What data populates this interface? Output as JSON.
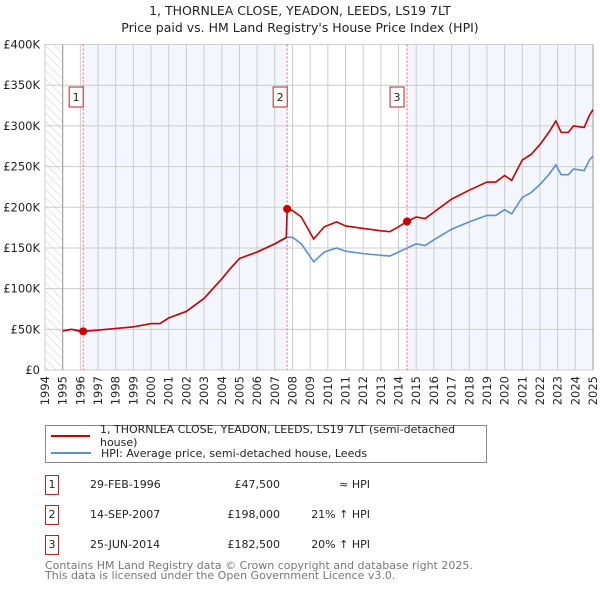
{
  "chart_data": {
    "type": "line",
    "title": "1, THORNLEA CLOSE, YEADON, LEEDS, LS19 7LT",
    "subtitle": "Price paid vs. HM Land Registry's House Price Index (HPI)",
    "xlim": [
      1994,
      2025
    ],
    "ylim": [
      0,
      400000
    ],
    "y_ticks": [
      {
        "v": 0,
        "label": "£0"
      },
      {
        "v": 50000,
        "label": "£50K"
      },
      {
        "v": 100000,
        "label": "£100K"
      },
      {
        "v": 150000,
        "label": "£150K"
      },
      {
        "v": 200000,
        "label": "£200K"
      },
      {
        "v": 250000,
        "label": "£250K"
      },
      {
        "v": 300000,
        "label": "£300K"
      },
      {
        "v": 350000,
        "label": "£350K"
      },
      {
        "v": 400000,
        "label": "£400K"
      }
    ],
    "x_ticks": [
      "1994",
      "1995",
      "1996",
      "1997",
      "1998",
      "1999",
      "2000",
      "2001",
      "2002",
      "2003",
      "2004",
      "2005",
      "2006",
      "2007",
      "2008",
      "2009",
      "2010",
      "2011",
      "2012",
      "2013",
      "2014",
      "2015",
      "2016",
      "2017",
      "2018",
      "2019",
      "2020",
      "2021",
      "2022",
      "2023",
      "2024",
      "2025"
    ],
    "grid": true,
    "series": [
      {
        "name": "1, THORNLEA CLOSE, YEADON, LEEDS, LS19 7LT (semi-detached house)",
        "color": "#cc0000",
        "x": [
          1995,
          1995.5,
          1996,
          1996.16,
          1997,
          1998,
          1999,
          2000,
          2000.5,
          2001,
          2002,
          2003,
          2004,
          2004.5,
          2005,
          2006,
          2007,
          2007.65,
          2007.7,
          2008,
          2008.5,
          2009.2,
          2009.8,
          2010.5,
          2011,
          2012,
          2013,
          2013.5,
          2014,
          2014.48,
          2015,
          2015.5,
          2016,
          2017,
          2018,
          2019,
          2019.5,
          2020,
          2020.4,
          2021,
          2021.5,
          2022,
          2022.5,
          2022.9,
          2023.2,
          2023.6,
          2023.9,
          2024.5,
          2024.8,
          2025
        ],
        "y": [
          48000,
          50000,
          48000,
          47500,
          49000,
          51000,
          53000,
          57000,
          57000,
          64000,
          72000,
          88000,
          112000,
          125000,
          137000,
          145000,
          155000,
          163000,
          198000,
          196000,
          188000,
          161000,
          176000,
          182000,
          177000,
          174000,
          171000,
          170000,
          176000,
          182500,
          188000,
          186000,
          194000,
          210000,
          221000,
          231000,
          231000,
          239000,
          233000,
          258000,
          265000,
          277000,
          292000,
          306000,
          292000,
          292000,
          300000,
          298000,
          313000,
          320000
        ]
      },
      {
        "name": "HPI: Average price, semi-detached house, Leeds",
        "color": "#5b8fd4",
        "x": [
          1995,
          1995.5,
          1996,
          1997,
          1998,
          1999,
          2000,
          2000.5,
          2001,
          2002,
          2003,
          2004,
          2004.5,
          2005,
          2006,
          2007,
          2007.7,
          2008,
          2008.5,
          2009.2,
          2009.8,
          2010.5,
          2011,
          2012,
          2013,
          2013.5,
          2014,
          2014.5,
          2015,
          2015.5,
          2016,
          2017,
          2018,
          2019,
          2019.5,
          2020,
          2020.4,
          2021,
          2021.5,
          2022,
          2022.5,
          2022.9,
          2023.2,
          2023.6,
          2023.9,
          2024.5,
          2024.8,
          2025
        ],
        "y": [
          48000,
          50000,
          47000,
          49000,
          51000,
          53000,
          57000,
          57000,
          64000,
          72000,
          88000,
          112000,
          125000,
          137000,
          145000,
          155000,
          163000,
          163000,
          155000,
          133000,
          145000,
          150000,
          146000,
          143000,
          141000,
          140000,
          145000,
          150000,
          155000,
          153000,
          160000,
          173000,
          182000,
          190000,
          190000,
          197000,
          192000,
          212000,
          218000,
          228000,
          240000,
          252000,
          240000,
          240000,
          247000,
          245000,
          258000,
          263000
        ]
      }
    ],
    "sales": [
      {
        "n": "1",
        "x": 1996.16,
        "y": 47500,
        "date": "29-FEB-1996",
        "price": "£47,500",
        "rel": "≈ HPI"
      },
      {
        "n": "2",
        "x": 2007.7,
        "y": 198000,
        "date": "14-SEP-2007",
        "price": "£198,000",
        "rel": "21% ↑ HPI"
      },
      {
        "n": "3",
        "x": 2014.48,
        "y": 182500,
        "date": "25-JUN-2014",
        "price": "£182,500",
        "rel": "20% ↑ HPI"
      }
    ],
    "legend": "bottom"
  },
  "footer": {
    "line1": "Contains HM Land Registry data © Crown copyright and database right 2025.",
    "line2": "This data is licensed under the Open Government Licence v3.0."
  }
}
